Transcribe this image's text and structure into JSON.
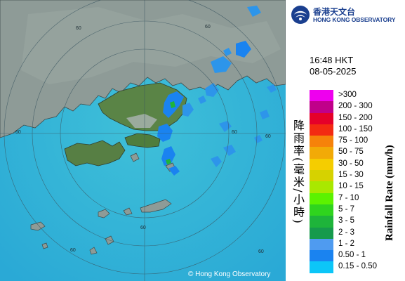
{
  "header": {
    "org_name_cn": "香港天文台",
    "org_name_en": "HONG KONG OBSERVATORY"
  },
  "timestamp": {
    "time": "16:48 HKT",
    "date": "08-05-2025"
  },
  "legend": {
    "title_cn": "降雨率(毫米/小時)",
    "title_en": "Rainfall Rate (mm/h)",
    "items": [
      {
        "label": ">300",
        "color": "#ee00ee"
      },
      {
        "label": "200 - 300",
        "color": "#c0008a"
      },
      {
        "label": "150 - 200",
        "color": "#e5002a"
      },
      {
        "label": "100 - 150",
        "color": "#f32a12"
      },
      {
        "label": "75 - 100",
        "color": "#f6820a"
      },
      {
        "label": "50 - 75",
        "color": "#f2aa07"
      },
      {
        "label": "30 - 50",
        "color": "#f5cd00"
      },
      {
        "label": "15 - 30",
        "color": "#d6d200"
      },
      {
        "label": "10 - 15",
        "color": "#a9e800"
      },
      {
        "label": "7 - 10",
        "color": "#5cf200"
      },
      {
        "label": "5 - 7",
        "color": "#2fd41e"
      },
      {
        "label": "3 - 5",
        "color": "#1eb43a"
      },
      {
        "label": "2 - 3",
        "color": "#169a4c"
      },
      {
        "label": "1 - 2",
        "color": "#4f9bf0"
      },
      {
        "label": "0.50 - 1",
        "color": "#1a83f0"
      },
      {
        "label": "0.15 - 0.50",
        "color": "#0cc6f8"
      }
    ]
  },
  "map": {
    "range_ring_labels": [
      "60",
      "60",
      "60",
      "60",
      "60",
      "60",
      "60",
      "60"
    ],
    "copyright": "© Hong Kong Observatory",
    "colors": {
      "sea": "#33b7dc",
      "land": "#8b9a94",
      "green_land": "#4f7d3d"
    }
  }
}
